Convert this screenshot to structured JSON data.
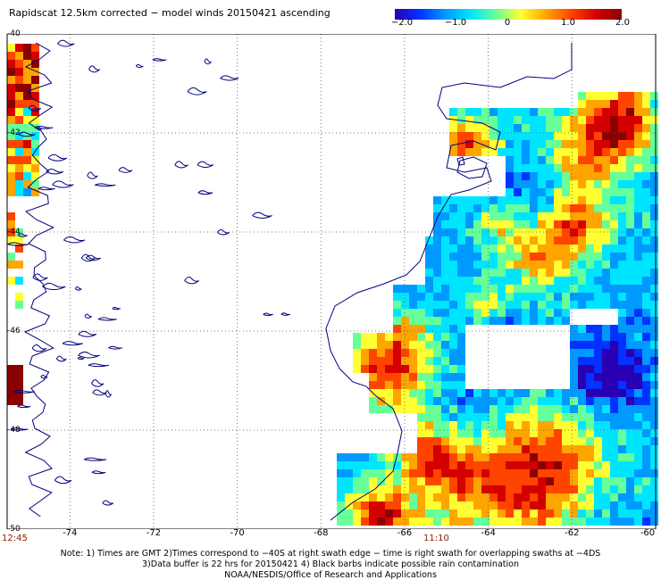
{
  "title": "Rapidscat 12.5km corrected − model winds 20150421 ascending",
  "colorbar": {
    "ticks": [
      "−2.0",
      "−1.0",
      "0",
      "1.0",
      "2.0"
    ],
    "tick_values": [
      -2.0,
      -1.0,
      0.0,
      1.0,
      2.0
    ],
    "range": [
      -2.0,
      2.0
    ],
    "colors": [
      "#2a00b4",
      "#0033ff",
      "#0099ff",
      "#00e5ff",
      "#66ff99",
      "#ffff33",
      "#ffa500",
      "#ff4400",
      "#d40000",
      "#8b0000"
    ]
  },
  "map": {
    "lat_labels": [
      "-40",
      "-42",
      "-44",
      "-46",
      "-48",
      "-50"
    ],
    "lat_values": [
      -40,
      -42,
      -44,
      -46,
      -48,
      -50
    ],
    "lon_labels": [
      "-74",
      "-72",
      "-70",
      "-68",
      "-66",
      "-64",
      "-62",
      "-60"
    ],
    "lon_values": [
      -74,
      -72,
      -70,
      -68,
      -66,
      -64,
      -62,
      -60
    ],
    "lon_range": [
      -75.5,
      -60
    ],
    "lat_range": [
      -50,
      -40
    ],
    "coastline_color": "#000080",
    "grid": "dotted"
  },
  "times": {
    "left": "12:45",
    "center": "11:10"
  },
  "notes": {
    "line1": "Note: 1) Times are GMT 2)Times correspond to −40S at right swath edge − time is right swath for overlapping swaths at −4DS",
    "line2": "3)Data buffer is 22 hrs for 20150421 4) Black barbs indicate possible rain contamination",
    "line3": "NOAA/NESDIS/Office of Research and Applications"
  }
}
